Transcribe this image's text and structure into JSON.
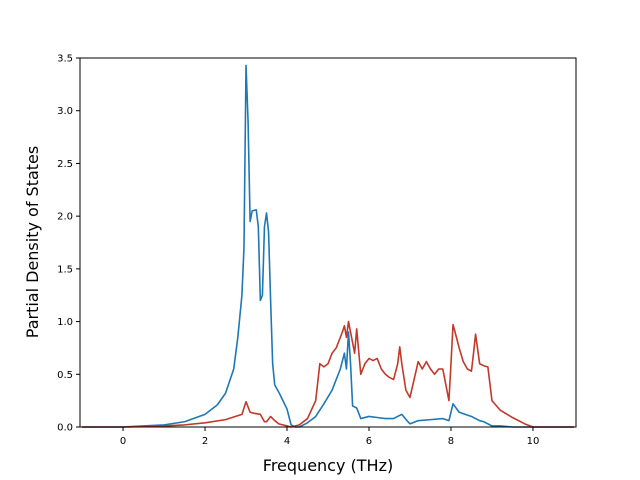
{
  "chart_data": {
    "type": "line",
    "title": "",
    "xlabel": "Frequency (THz)",
    "ylabel": "Partial Density of States",
    "xlim": [
      -1.05,
      11.05
    ],
    "ylim": [
      0,
      3.5
    ],
    "xticks": [
      0,
      2,
      4,
      6,
      8,
      10
    ],
    "xtick_labels": [
      "0",
      "2",
      "4",
      "6",
      "8",
      "10"
    ],
    "yticks": [
      0,
      0.5,
      1.0,
      1.5,
      2.0,
      2.5,
      3.0,
      3.5
    ],
    "ytick_labels": [
      "0.0",
      "0.5",
      "1.0",
      "1.5",
      "2.0",
      "2.5",
      "3.0",
      "3.5"
    ],
    "grid": false,
    "legend": "none",
    "series": [
      {
        "color": "#1f77b4",
        "points": [
          [
            -1.0,
            0.0
          ],
          [
            0.0,
            0.0
          ],
          [
            0.5,
            0.01
          ],
          [
            1.0,
            0.02
          ],
          [
            1.5,
            0.05
          ],
          [
            2.0,
            0.12
          ],
          [
            2.3,
            0.21
          ],
          [
            2.5,
            0.32
          ],
          [
            2.7,
            0.55
          ],
          [
            2.8,
            0.85
          ],
          [
            2.9,
            1.25
          ],
          [
            2.95,
            1.7
          ],
          [
            3.0,
            3.43
          ],
          [
            3.05,
            2.9
          ],
          [
            3.1,
            1.95
          ],
          [
            3.15,
            2.05
          ],
          [
            3.25,
            2.06
          ],
          [
            3.3,
            1.9
          ],
          [
            3.35,
            1.2
          ],
          [
            3.4,
            1.25
          ],
          [
            3.45,
            1.9
          ],
          [
            3.5,
            2.03
          ],
          [
            3.55,
            1.85
          ],
          [
            3.6,
            1.2
          ],
          [
            3.65,
            0.6
          ],
          [
            3.7,
            0.4
          ],
          [
            3.8,
            0.33
          ],
          [
            3.9,
            0.25
          ],
          [
            4.0,
            0.17
          ],
          [
            4.1,
            0.02
          ],
          [
            4.2,
            0.0
          ],
          [
            4.3,
            0.0
          ],
          [
            4.5,
            0.04
          ],
          [
            4.7,
            0.1
          ],
          [
            4.9,
            0.22
          ],
          [
            5.1,
            0.35
          ],
          [
            5.3,
            0.55
          ],
          [
            5.4,
            0.7
          ],
          [
            5.45,
            0.55
          ],
          [
            5.5,
            0.9
          ],
          [
            5.55,
            0.6
          ],
          [
            5.6,
            0.2
          ],
          [
            5.7,
            0.18
          ],
          [
            5.8,
            0.08
          ],
          [
            6.0,
            0.1
          ],
          [
            6.2,
            0.09
          ],
          [
            6.4,
            0.08
          ],
          [
            6.6,
            0.08
          ],
          [
            6.8,
            0.12
          ],
          [
            6.95,
            0.05
          ],
          [
            7.0,
            0.03
          ],
          [
            7.2,
            0.06
          ],
          [
            7.5,
            0.07
          ],
          [
            7.8,
            0.08
          ],
          [
            7.95,
            0.06
          ],
          [
            8.05,
            0.22
          ],
          [
            8.2,
            0.14
          ],
          [
            8.5,
            0.1
          ],
          [
            8.7,
            0.06
          ],
          [
            8.8,
            0.05
          ],
          [
            9.0,
            0.01
          ],
          [
            9.2,
            0.01
          ],
          [
            9.5,
            0.0
          ],
          [
            11.0,
            0.0
          ]
        ]
      },
      {
        "color": "#c0392b",
        "points": [
          [
            -1.0,
            0.0
          ],
          [
            0.0,
            0.0
          ],
          [
            0.5,
            0.005
          ],
          [
            1.0,
            0.01
          ],
          [
            1.5,
            0.02
          ],
          [
            2.0,
            0.04
          ],
          [
            2.5,
            0.07
          ],
          [
            2.9,
            0.12
          ],
          [
            3.0,
            0.24
          ],
          [
            3.1,
            0.14
          ],
          [
            3.2,
            0.13
          ],
          [
            3.35,
            0.12
          ],
          [
            3.45,
            0.05
          ],
          [
            3.5,
            0.05
          ],
          [
            3.6,
            0.1
          ],
          [
            3.7,
            0.06
          ],
          [
            3.8,
            0.03
          ],
          [
            3.9,
            0.02
          ],
          [
            4.0,
            0.01
          ],
          [
            4.1,
            0.0
          ],
          [
            4.3,
            0.02
          ],
          [
            4.5,
            0.08
          ],
          [
            4.7,
            0.25
          ],
          [
            4.8,
            0.6
          ],
          [
            4.9,
            0.57
          ],
          [
            5.0,
            0.6
          ],
          [
            5.1,
            0.7
          ],
          [
            5.2,
            0.75
          ],
          [
            5.3,
            0.85
          ],
          [
            5.35,
            0.9
          ],
          [
            5.4,
            0.96
          ],
          [
            5.45,
            0.85
          ],
          [
            5.5,
            1.0
          ],
          [
            5.55,
            0.9
          ],
          [
            5.6,
            0.8
          ],
          [
            5.65,
            0.7
          ],
          [
            5.7,
            0.93
          ],
          [
            5.8,
            0.5
          ],
          [
            5.85,
            0.55
          ],
          [
            5.9,
            0.6
          ],
          [
            6.0,
            0.65
          ],
          [
            6.1,
            0.63
          ],
          [
            6.2,
            0.65
          ],
          [
            6.3,
            0.55
          ],
          [
            6.4,
            0.5
          ],
          [
            6.5,
            0.47
          ],
          [
            6.6,
            0.45
          ],
          [
            6.7,
            0.6
          ],
          [
            6.75,
            0.76
          ],
          [
            6.8,
            0.6
          ],
          [
            6.9,
            0.35
          ],
          [
            7.0,
            0.28
          ],
          [
            7.1,
            0.45
          ],
          [
            7.2,
            0.62
          ],
          [
            7.3,
            0.55
          ],
          [
            7.4,
            0.62
          ],
          [
            7.5,
            0.55
          ],
          [
            7.6,
            0.5
          ],
          [
            7.7,
            0.55
          ],
          [
            7.8,
            0.55
          ],
          [
            7.85,
            0.45
          ],
          [
            7.95,
            0.25
          ],
          [
            8.0,
            0.6
          ],
          [
            8.05,
            0.97
          ],
          [
            8.1,
            0.9
          ],
          [
            8.2,
            0.75
          ],
          [
            8.3,
            0.62
          ],
          [
            8.4,
            0.55
          ],
          [
            8.5,
            0.53
          ],
          [
            8.55,
            0.7
          ],
          [
            8.6,
            0.88
          ],
          [
            8.7,
            0.6
          ],
          [
            8.8,
            0.58
          ],
          [
            8.9,
            0.57
          ],
          [
            9.0,
            0.25
          ],
          [
            9.2,
            0.16
          ],
          [
            9.5,
            0.09
          ],
          [
            9.8,
            0.03
          ],
          [
            10.0,
            0.0
          ],
          [
            11.0,
            0.0
          ]
        ]
      }
    ]
  }
}
